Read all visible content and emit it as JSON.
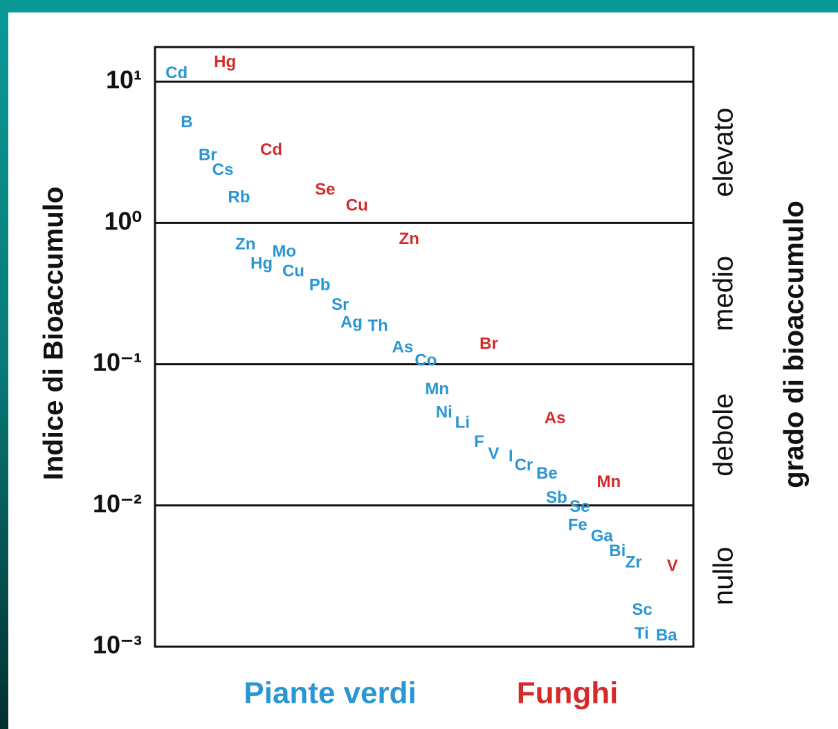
{
  "chart_data": {
    "type": "scatter",
    "ylabel": "Indice di Bioaccumulo",
    "y2label": "grado di bioaccumulo",
    "bands": [
      "elevato",
      "medio",
      "debole",
      "nullo"
    ],
    "log_y": true,
    "grid": true,
    "ylim": [
      0.001,
      17.6
    ],
    "yticks": [
      {
        "value": 10,
        "label": "10¹"
      },
      {
        "value": 1,
        "label": "10⁰"
      },
      {
        "value": 0.1,
        "label": "10⁻¹"
      },
      {
        "value": 0.01,
        "label": "10⁻²"
      },
      {
        "value": 0.001,
        "label": "10⁻³"
      }
    ],
    "xlim": [
      0,
      100
    ],
    "series": [
      {
        "name": "Piante verdi",
        "color": "#2a96d4",
        "labels": [
          "Cd",
          "B",
          "Br",
          "Cs",
          "Rb",
          "Zn",
          "Hg",
          "Mo",
          "Cu",
          "Pb",
          "Sr",
          "Ag",
          "Th",
          "As",
          "Co",
          "Mn",
          "Ni",
          "Li",
          "F",
          "V",
          "I",
          "Cr",
          "Be",
          "Sb",
          "Se",
          "Fe",
          "Ga",
          "Bi",
          "Zr",
          "Sc",
          "Ti",
          "Ba"
        ],
        "x": [
          4.0,
          5.9,
          9.8,
          12.6,
          15.6,
          16.8,
          19.8,
          24.0,
          25.7,
          30.6,
          34.4,
          36.5,
          41.4,
          46.0,
          50.3,
          52.4,
          53.7,
          57.1,
          60.2,
          62.9,
          66.1,
          68.5,
          72.8,
          74.6,
          78.9,
          78.5,
          83.0,
          85.9,
          88.9,
          90.5,
          90.4,
          95.0
        ],
        "values": [
          11.4,
          5.1,
          3.0,
          2.35,
          1.5,
          0.7,
          0.51,
          0.62,
          0.45,
          0.36,
          0.26,
          0.195,
          0.185,
          0.13,
          0.105,
          0.066,
          0.045,
          0.038,
          0.028,
          0.023,
          0.022,
          0.019,
          0.0166,
          0.0112,
          0.0097,
          0.0072,
          0.006,
          0.0047,
          0.0039,
          0.0018,
          0.00122,
          0.00119
        ]
      },
      {
        "name": "Funghi",
        "color": "#d42a2a",
        "labels": [
          "Hg",
          "Cd",
          "Se",
          "Cu",
          "Zn",
          "Br",
          "As",
          "Mn",
          "V"
        ],
        "x": [
          13.0,
          21.6,
          31.6,
          37.5,
          47.2,
          62.0,
          74.3,
          84.3,
          96.1
        ],
        "values": [
          13.6,
          3.26,
          1.7,
          1.31,
          0.76,
          0.138,
          0.041,
          0.0145,
          0.0037
        ]
      }
    ]
  }
}
